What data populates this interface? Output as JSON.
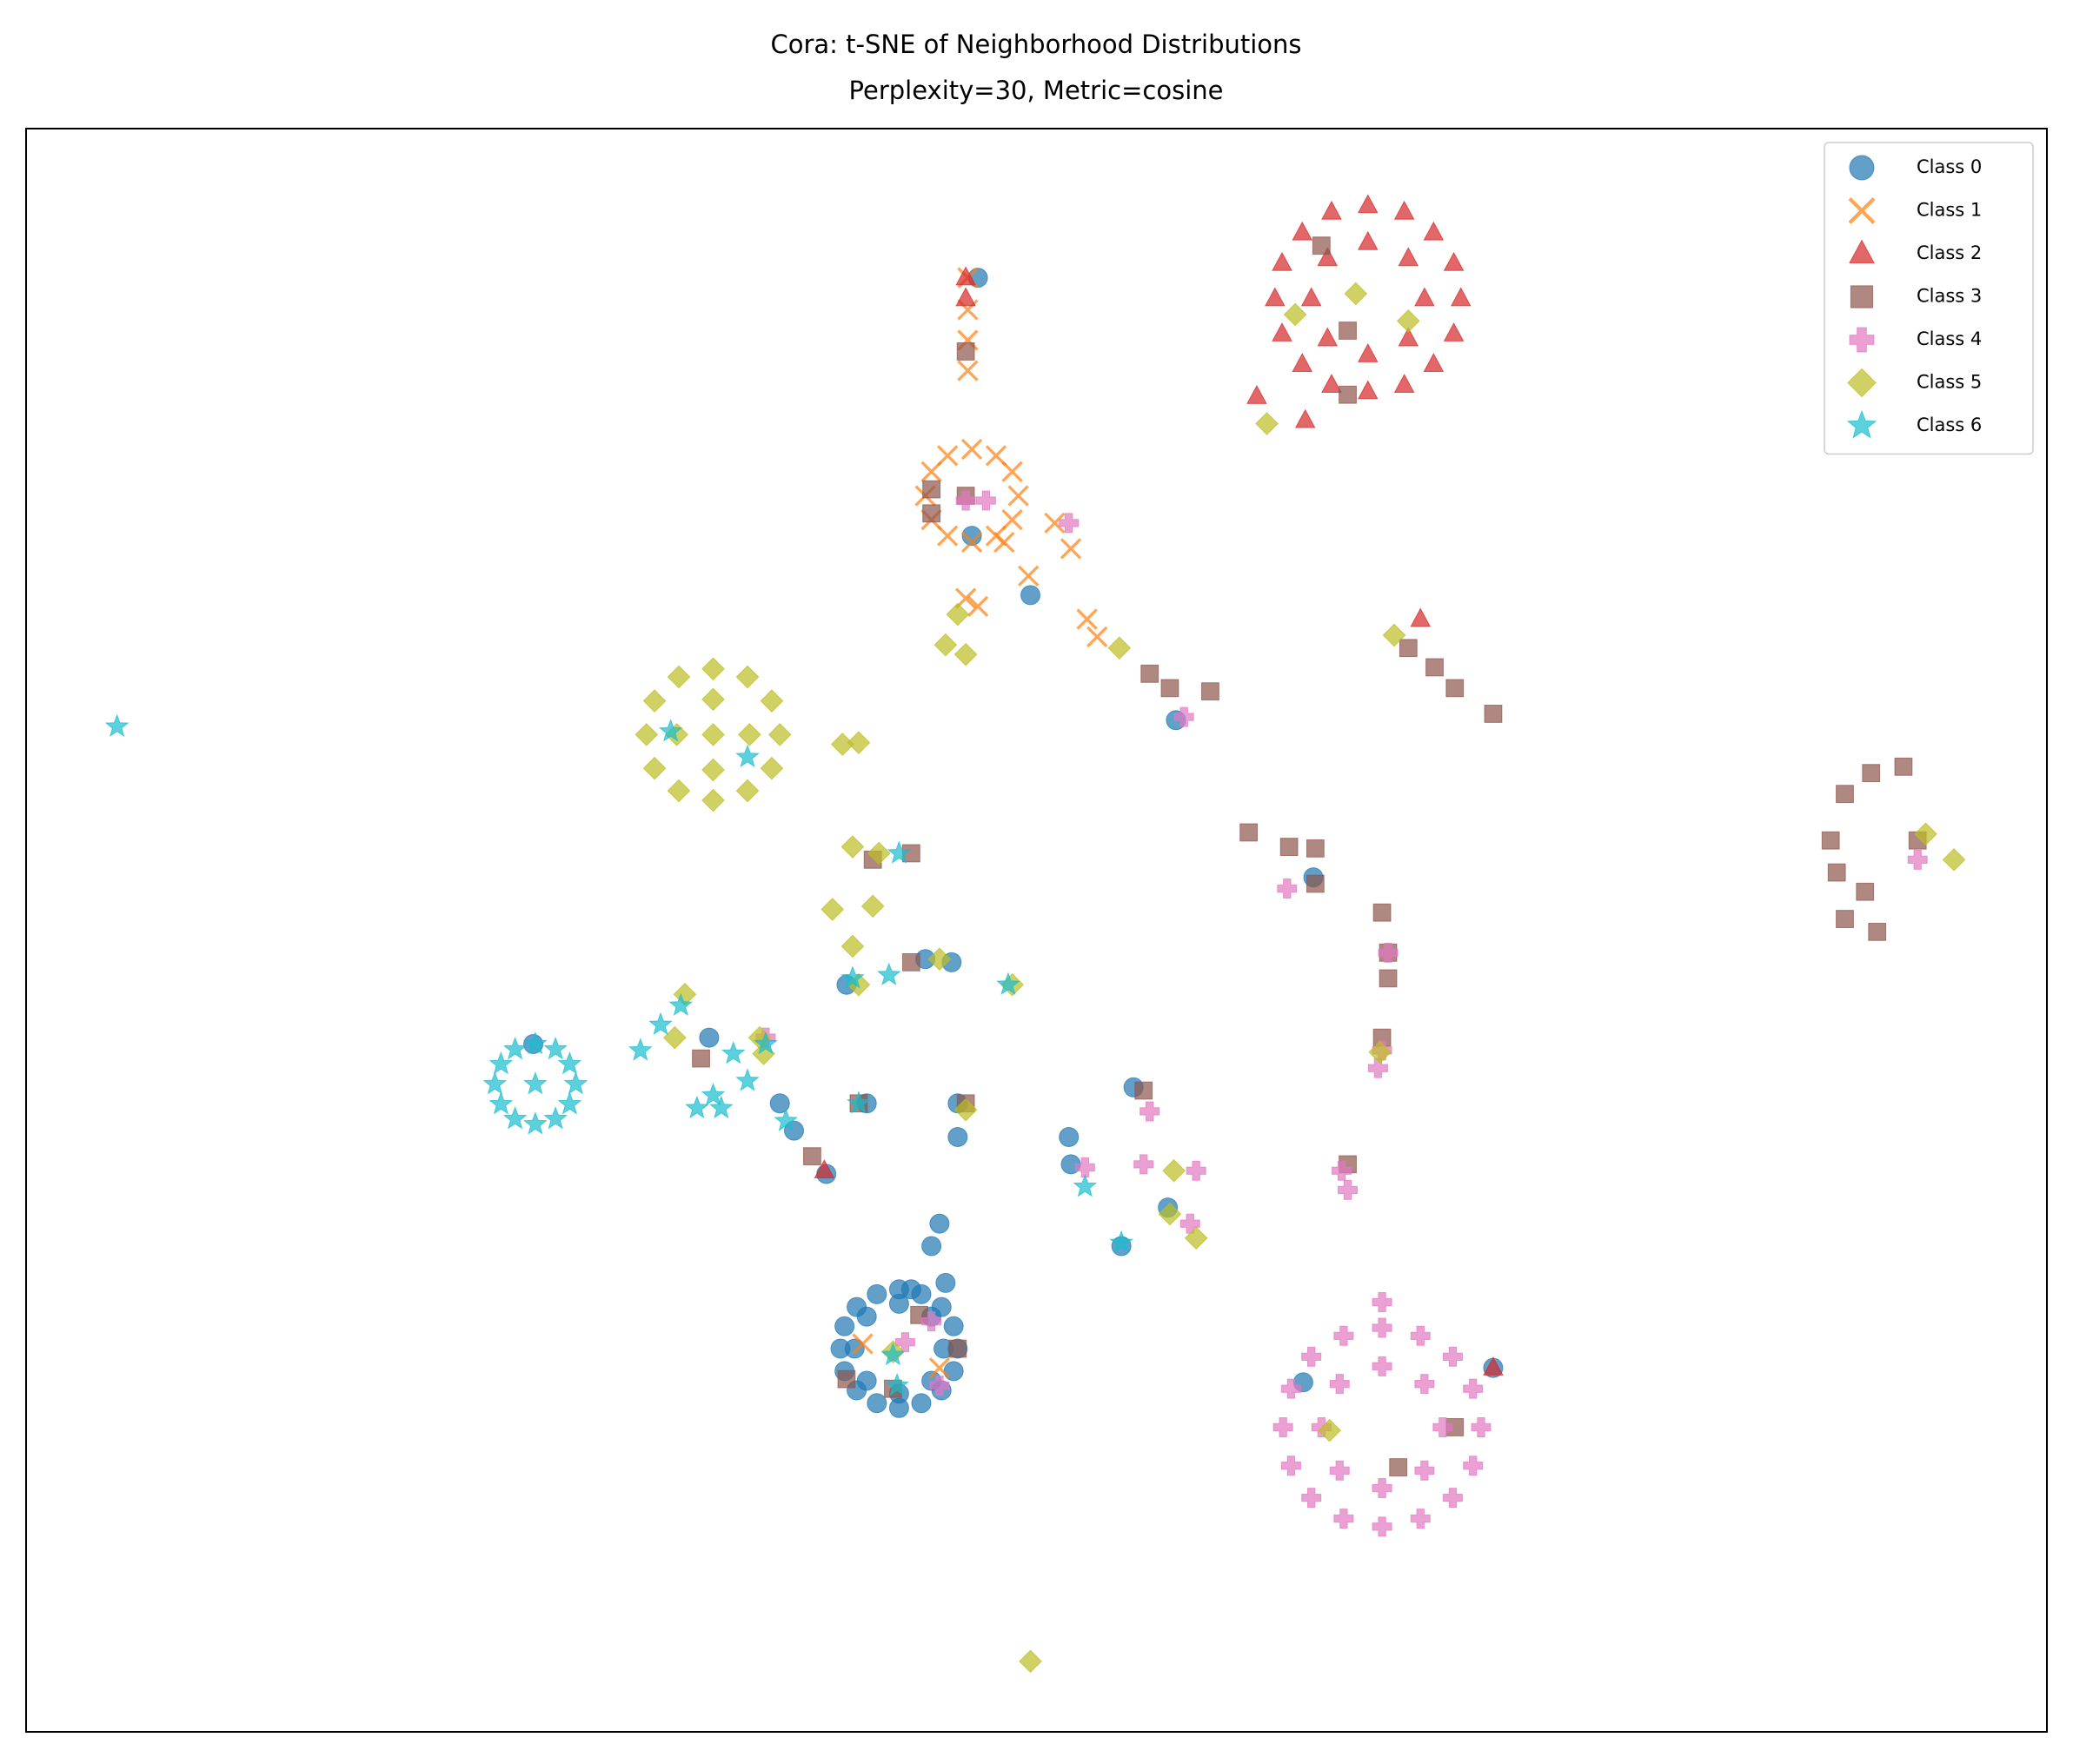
{
  "chart_data": {
    "type": "scatter",
    "title": "Cora: t-SNE of Neighborhood Distributions",
    "subtitle": "Perplexity=30, Metric=cosine",
    "xlim": [
      0,
      100
    ],
    "ylim": [
      0,
      100
    ],
    "legend": "upper right",
    "series": [
      {
        "name": "Class 0",
        "color": "#1f77b4",
        "marker": "circle",
        "x": [
          46.1,
          45.9,
          45.3,
          44.3,
          43.2,
          42.1,
          41.1,
          40.5,
          40.3,
          40.5,
          41.1,
          42.1,
          43.2,
          44.3,
          45.3,
          45.9,
          45.4,
          44.8,
          43.2,
          41.6,
          41.0,
          41.6,
          43.2,
          44.8,
          45.5,
          43.8,
          47.1,
          46.8,
          49.7,
          56.9,
          63.7,
          40.6,
          44.5,
          45.8,
          38.0,
          37.3,
          39.6,
          46.1,
          46.1,
          51.6,
          51.7,
          54.8,
          56.5,
          54.2,
          45.2,
          44.8,
          25.1,
          33.8,
          63.2,
          72.6,
          41.6
        ],
        "values": [
          23.9,
          25.3,
          26.5,
          27.3,
          27.6,
          27.3,
          26.5,
          25.3,
          23.9,
          22.5,
          21.3,
          20.5,
          20.2,
          20.5,
          21.3,
          22.5,
          23.9,
          25.9,
          26.7,
          25.9,
          23.9,
          21.9,
          21.1,
          21.9,
          28.0,
          27.6,
          90.7,
          74.6,
          70.9,
          63.1,
          53.3,
          46.6,
          48.2,
          48.0,
          37.5,
          39.2,
          34.8,
          37.1,
          39.2,
          37.1,
          35.4,
          40.2,
          32.7,
          30.3,
          31.7,
          30.3,
          42.9,
          43.3,
          21.8,
          22.7,
          39.2
        ]
      },
      {
        "name": "Class 1",
        "color": "#ff7f0e",
        "marker": "x",
        "x": [
          49.1,
          48.8,
          48.0,
          46.8,
          45.6,
          44.8,
          44.5,
          44.8,
          45.6,
          46.8,
          48.0,
          48.8,
          46.6,
          46.6,
          46.6,
          46.6,
          48.4,
          50.9,
          51.7,
          49.6,
          46.5,
          47.1,
          52.5,
          53.0,
          41.4,
          45.2
        ],
        "values": [
          77.1,
          78.6,
          79.6,
          80.0,
          79.6,
          78.6,
          77.1,
          75.6,
          74.6,
          74.2,
          74.6,
          75.6,
          90.7,
          88.7,
          86.8,
          84.9,
          74.2,
          75.4,
          73.8,
          72.1,
          70.7,
          70.2,
          69.4,
          68.3,
          24.2,
          22.7
        ]
      },
      {
        "name": "Class 2",
        "color": "#d62728",
        "marker": "triangle",
        "x": [
          71.0,
          70.65,
          69.65,
          68.2,
          66.4,
          64.6,
          63.15,
          62.15,
          61.8,
          62.15,
          63.15,
          64.6,
          66.4,
          68.2,
          69.65,
          70.65,
          69.2,
          68.4,
          66.4,
          64.4,
          63.6,
          64.4,
          66.4,
          68.4,
          60.9,
          63.3,
          46.5,
          46.5,
          69.0,
          39.5,
          72.6
        ],
        "values": [
          89.4,
          91.6,
          93.5,
          94.8,
          95.2,
          94.8,
          93.5,
          91.6,
          89.4,
          87.2,
          85.3,
          84.0,
          83.6,
          84.0,
          85.3,
          87.2,
          89.4,
          91.9,
          92.9,
          91.9,
          89.4,
          86.9,
          85.9,
          86.9,
          83.3,
          81.8,
          90.7,
          89.4,
          69.4,
          35.0,
          22.7
        ]
      },
      {
        "name": "Class 3",
        "color": "#8c564b",
        "marker": "square",
        "x": [
          46.5,
          44.8,
          44.8,
          46.5,
          55.6,
          56.6,
          58.6,
          60.5,
          62.5,
          63.8,
          63.8,
          67.1,
          67.4,
          67.4,
          67.1,
          68.4,
          69.7,
          70.7,
          72.6,
          64.1,
          65.4,
          65.4,
          90.0,
          91.3,
          92.9,
          89.3,
          89.6,
          91.0,
          90.0,
          91.6,
          93.6,
          43.8,
          41.9,
          43.8,
          46.5,
          38.9,
          33.4,
          55.3,
          40.6,
          44.2,
          46.1,
          42.9,
          65.4,
          70.7,
          67.9,
          41.2
        ],
        "values": [
          86.1,
          77.5,
          76.0,
          77.1,
          66.0,
          65.1,
          64.9,
          56.1,
          55.2,
          55.1,
          52.9,
          51.1,
          48.6,
          47.0,
          43.3,
          67.6,
          66.4,
          65.1,
          63.5,
          92.7,
          87.4,
          83.4,
          58.5,
          59.8,
          60.2,
          55.6,
          53.6,
          52.4,
          50.7,
          49.9,
          55.6,
          54.8,
          54.4,
          48.0,
          39.2,
          35.9,
          42.0,
          40.0,
          22.0,
          26.0,
          23.9,
          21.4,
          35.4,
          19.0,
          16.5,
          39.2
        ]
      },
      {
        "name": "Class 4",
        "color": "#e377c2",
        "marker": "plus",
        "x": [
          72.0,
          71.6,
          70.6,
          69.0,
          67.1,
          65.2,
          63.6,
          62.6,
          62.2,
          62.6,
          63.6,
          65.2,
          67.1,
          69.0,
          70.6,
          71.6,
          70.1,
          69.2,
          67.1,
          65.0,
          64.1,
          65.0,
          67.1,
          69.2,
          51.6,
          46.5,
          47.5,
          57.3,
          62.4,
          67.4,
          67.1,
          66.9,
          65.1,
          65.4,
          55.6,
          55.3,
          57.9,
          52.4,
          57.6,
          67.1,
          44.8,
          45.2,
          43.5,
          93.6,
          36.6
        ],
        "values": [
          19.0,
          21.4,
          23.4,
          24.7,
          25.2,
          24.7,
          23.4,
          21.4,
          19.0,
          16.6,
          14.6,
          13.3,
          12.8,
          13.3,
          14.6,
          16.6,
          19.0,
          21.7,
          22.8,
          21.7,
          19.0,
          16.3,
          15.2,
          16.3,
          75.4,
          76.8,
          76.8,
          63.3,
          52.6,
          48.6,
          42.5,
          41.4,
          35.0,
          33.8,
          38.7,
          35.4,
          35.0,
          35.2,
          31.7,
          26.8,
          25.6,
          21.6,
          24.3,
          54.4,
          43.3
        ]
      },
      {
        "name": "Class 5",
        "color": "#bcbd22",
        "marker": "diamond",
        "x": [
          37.3,
          36.9,
          35.7,
          34.0,
          32.3,
          31.1,
          30.7,
          31.1,
          32.3,
          34.0,
          35.7,
          36.9,
          35.8,
          34.0,
          32.2,
          34.0,
          34.0,
          62.8,
          65.8,
          68.4,
          61.4,
          46.1,
          45.5,
          46.5,
          54.1,
          67.7,
          40.4,
          41.2,
          40.9,
          42.2,
          39.9,
          41.9,
          40.9,
          41.2,
          45.2,
          48.8,
          32.6,
          32.1,
          36.3,
          36.5,
          46.5,
          56.8,
          56.6,
          57.9,
          67.0,
          64.5,
          42.9,
          94.0,
          95.4,
          49.7
        ],
        "values": [
          62.2,
          64.3,
          65.8,
          66.3,
          65.8,
          64.3,
          62.2,
          60.1,
          58.7,
          58.1,
          58.7,
          60.1,
          62.2,
          64.4,
          62.2,
          60.0,
          62.2,
          88.4,
          89.7,
          88.0,
          81.6,
          69.7,
          67.8,
          67.2,
          67.6,
          68.4,
          61.6,
          61.7,
          55.2,
          54.8,
          51.3,
          51.5,
          49.0,
          46.6,
          48.2,
          46.6,
          46.0,
          43.3,
          43.3,
          42.3,
          38.8,
          35.0,
          32.3,
          30.8,
          42.4,
          18.8,
          23.7,
          56.0,
          54.4,
          4.4
        ]
      },
      {
        "name": "Class 6",
        "color": "#17becf",
        "marker": "star",
        "x": [
          27.2,
          26.9,
          26.2,
          25.2,
          24.2,
          23.5,
          23.2,
          23.5,
          24.2,
          25.2,
          26.2,
          26.9,
          25.2,
          4.5,
          31.9,
          35.7,
          43.2,
          40.9,
          42.7,
          48.6,
          30.4,
          31.4,
          32.4,
          35.0,
          36.6,
          33.2,
          34.4,
          34.0,
          35.7,
          37.6,
          41.2,
          52.4,
          54.2,
          42.9,
          43.1
        ],
        "values": [
          40.4,
          41.65,
          42.57,
          42.9,
          42.57,
          41.65,
          40.4,
          39.15,
          38.23,
          37.9,
          38.23,
          39.15,
          40.4,
          62.7,
          62.4,
          60.8,
          54.8,
          47.0,
          47.2,
          46.6,
          42.5,
          44.1,
          45.3,
          42.3,
          42.9,
          38.9,
          38.9,
          39.7,
          40.6,
          38.1,
          39.2,
          34.0,
          30.5,
          23.5,
          21.6
        ]
      }
    ]
  }
}
